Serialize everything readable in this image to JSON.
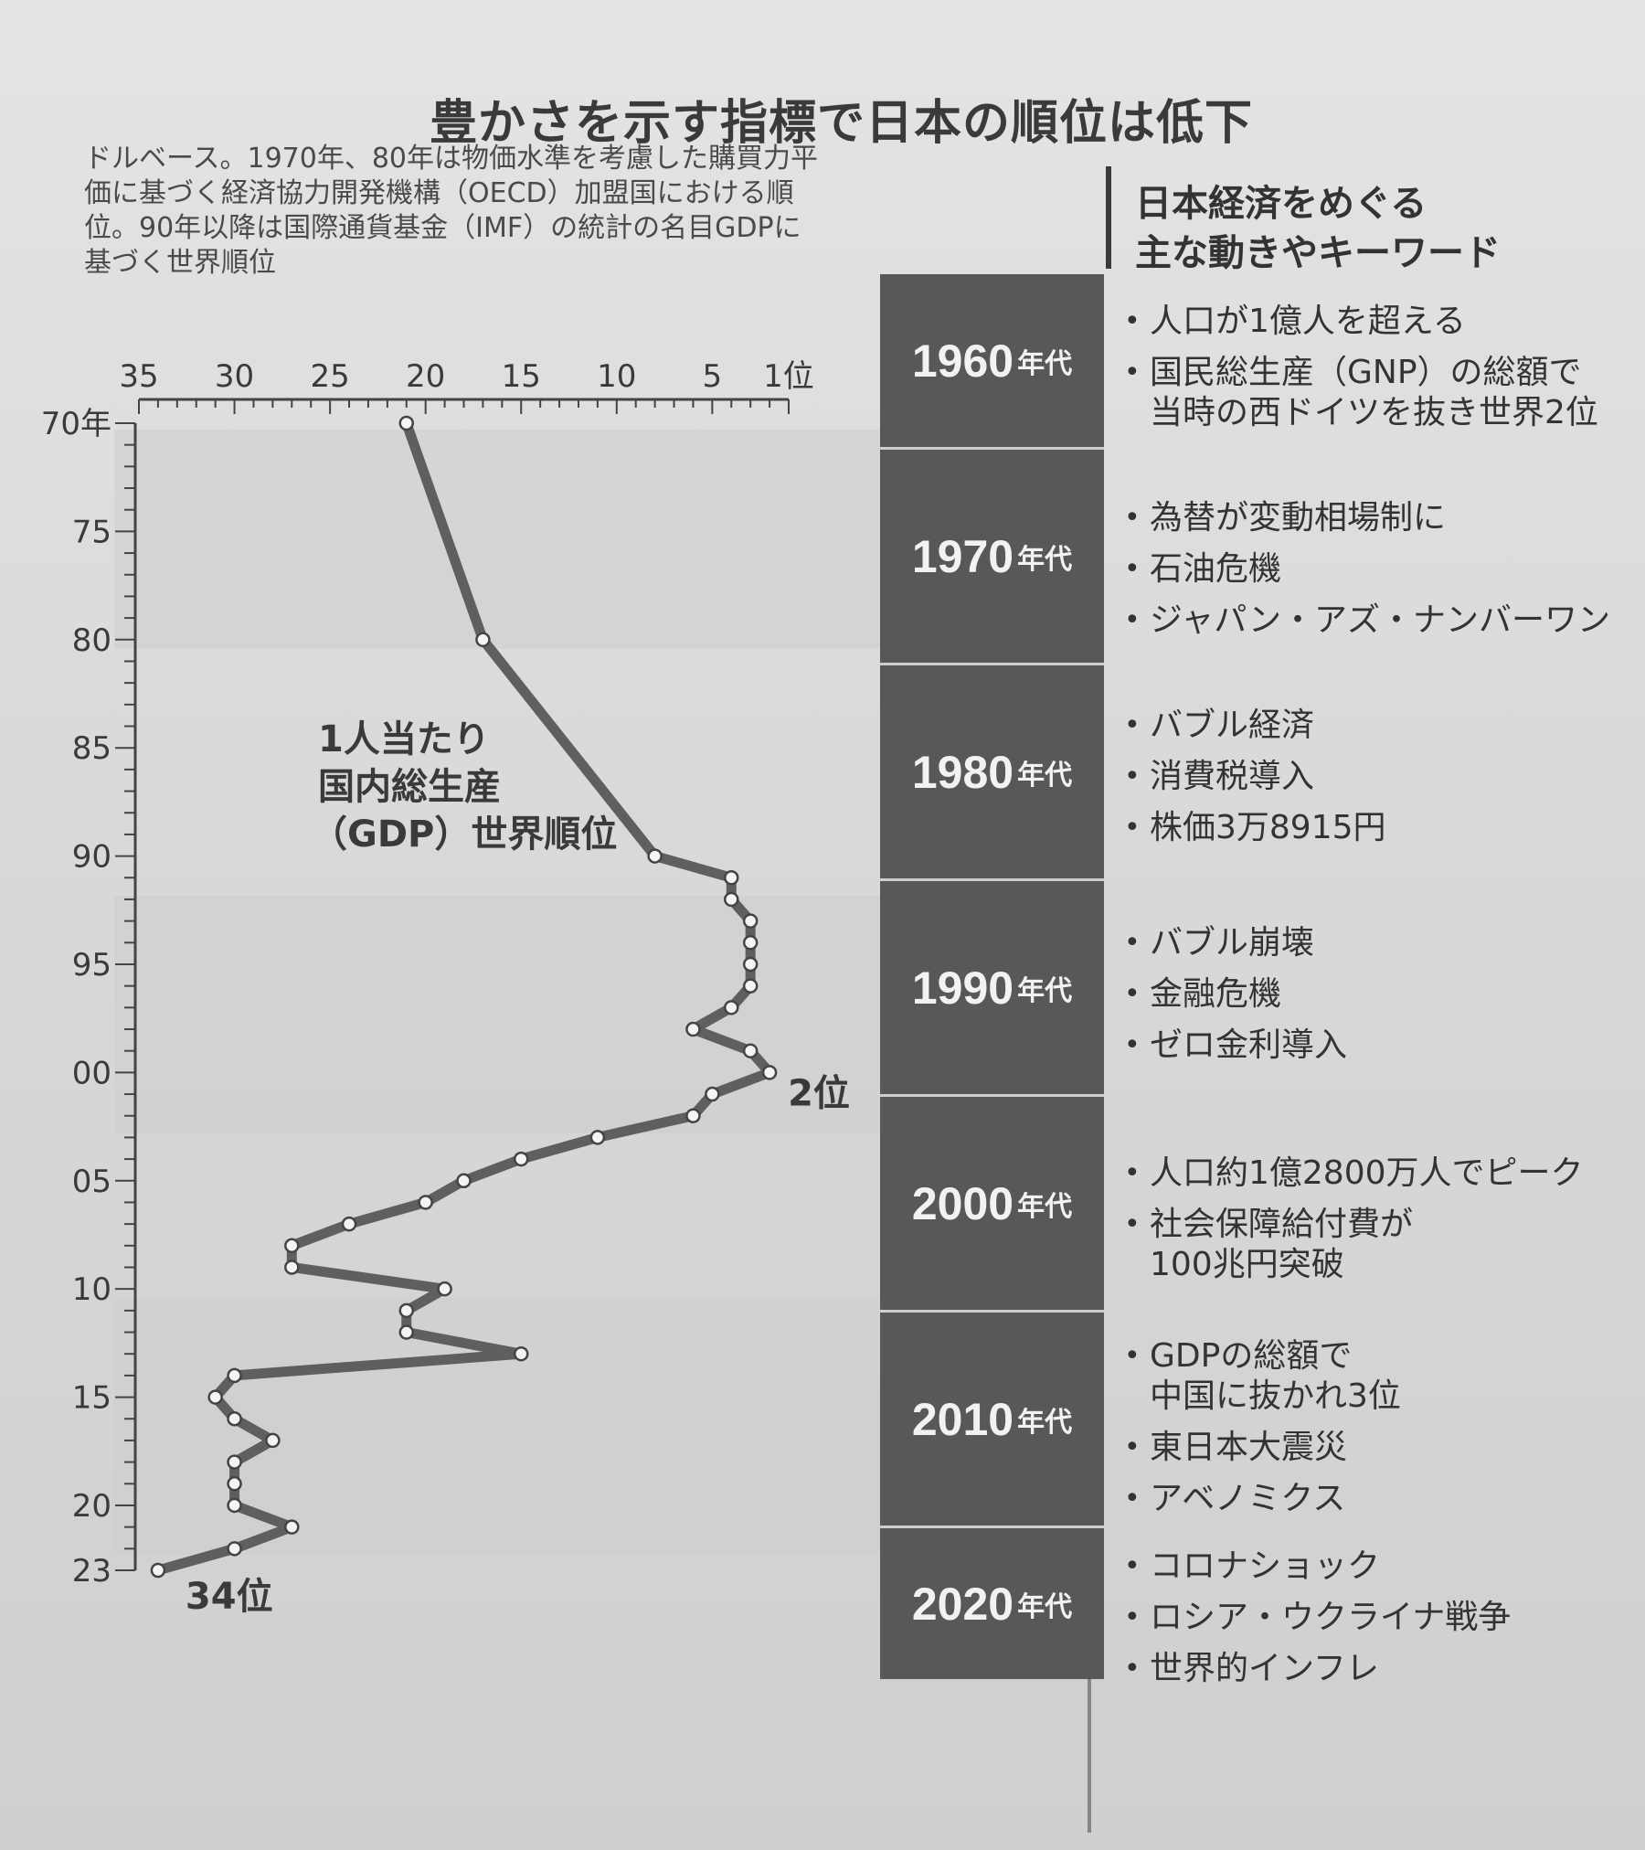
{
  "title": "豊かさを示す指標で日本の順位は低下",
  "note_lines": [
    "ドルベース。1970年、80年は物価水準を考慮した購買力平",
    "価に基づく経済協力開発機構（OECD）加盟国における順",
    "位。90年以降は国際通貨基金（IMF）の統計の名目GDPに",
    "基づく世界順位"
  ],
  "keywords_title": [
    "日本経済をめぐる",
    "主な動きやキーワード"
  ],
  "chart_data": {
    "type": "line",
    "series_label": [
      "1人当たり",
      "国内総生産",
      "（GDP）世界順位"
    ],
    "x_axis": {
      "ticks": [
        "35",
        "30",
        "25",
        "20",
        "15",
        "10",
        "5",
        "1位"
      ],
      "tick_values": [
        35,
        30,
        25,
        20,
        15,
        10,
        5,
        1
      ],
      "range": [
        35,
        1
      ],
      "reversed": true
    },
    "y_axis": {
      "ticks": [
        "70年",
        "75",
        "80",
        "85",
        "90",
        "95",
        "00",
        "05",
        "10",
        "15",
        "20",
        "23"
      ],
      "tick_years": [
        1970,
        1975,
        1980,
        1985,
        1990,
        1995,
        2000,
        2005,
        2010,
        2015,
        2020,
        2023
      ],
      "range": [
        1970,
        2023
      ]
    },
    "points": [
      {
        "year": 1970,
        "rank": 21
      },
      {
        "year": 1980,
        "rank": 17
      },
      {
        "year": 1990,
        "rank": 8
      },
      {
        "year": 1991,
        "rank": 4
      },
      {
        "year": 1992,
        "rank": 4
      },
      {
        "year": 1993,
        "rank": 3
      },
      {
        "year": 1994,
        "rank": 3
      },
      {
        "year": 1995,
        "rank": 3
      },
      {
        "year": 1996,
        "rank": 3
      },
      {
        "year": 1997,
        "rank": 4
      },
      {
        "year": 1998,
        "rank": 6
      },
      {
        "year": 1999,
        "rank": 3
      },
      {
        "year": 2000,
        "rank": 2
      },
      {
        "year": 2001,
        "rank": 5
      },
      {
        "year": 2002,
        "rank": 6
      },
      {
        "year": 2003,
        "rank": 11
      },
      {
        "year": 2004,
        "rank": 15
      },
      {
        "year": 2005,
        "rank": 18
      },
      {
        "year": 2006,
        "rank": 20
      },
      {
        "year": 2007,
        "rank": 24
      },
      {
        "year": 2008,
        "rank": 27
      },
      {
        "year": 2009,
        "rank": 27
      },
      {
        "year": 2010,
        "rank": 19
      },
      {
        "year": 2011,
        "rank": 21
      },
      {
        "year": 2012,
        "rank": 21
      },
      {
        "year": 2013,
        "rank": 15
      },
      {
        "year": 2014,
        "rank": 30
      },
      {
        "year": 2015,
        "rank": 31
      },
      {
        "year": 2016,
        "rank": 30
      },
      {
        "year": 2017,
        "rank": 28
      },
      {
        "year": 2018,
        "rank": 30
      },
      {
        "year": 2019,
        "rank": 30
      },
      {
        "year": 2020,
        "rank": 30
      },
      {
        "year": 2021,
        "rank": 27
      },
      {
        "year": 2022,
        "rank": 30
      },
      {
        "year": 2023,
        "rank": 34
      }
    ],
    "annotations": [
      {
        "year": 2000,
        "rank": 2,
        "text": "2位"
      },
      {
        "year": 2023,
        "rank": 34,
        "text": "34位"
      }
    ]
  },
  "decades": [
    {
      "label": "1960",
      "suffix": "年代",
      "events": [
        "人口が1億人を超える",
        "国民総生産（GNP）の総額で|当時の西ドイツを抜き世界2位"
      ]
    },
    {
      "label": "1970",
      "suffix": "年代",
      "events": [
        "為替が変動相場制に",
        "石油危機",
        "ジャパン・アズ・ナンバーワン"
      ]
    },
    {
      "label": "1980",
      "suffix": "年代",
      "events": [
        "バブル経済",
        "消費税導入",
        "株価3万8915円"
      ]
    },
    {
      "label": "1990",
      "suffix": "年代",
      "events": [
        "バブル崩壊",
        "金融危機",
        "ゼロ金利導入"
      ]
    },
    {
      "label": "2000",
      "suffix": "年代",
      "events": [
        "人口約1億2800万人でピーク",
        "社会保障給付費が|100兆円突破"
      ]
    },
    {
      "label": "2010",
      "suffix": "年代",
      "events": [
        "GDPの総額で|中国に抜かれ3位",
        "東日本大震災",
        "アベノミクス"
      ]
    },
    {
      "label": "2020",
      "suffix": "年代",
      "events": [
        "コロナショック",
        "ロシア・ウクライナ戦争",
        "世界的インフレ"
      ]
    }
  ],
  "colors": {
    "line": "#5f5f5f",
    "decade_fill": "#585858",
    "text": "#3a3a3a"
  }
}
